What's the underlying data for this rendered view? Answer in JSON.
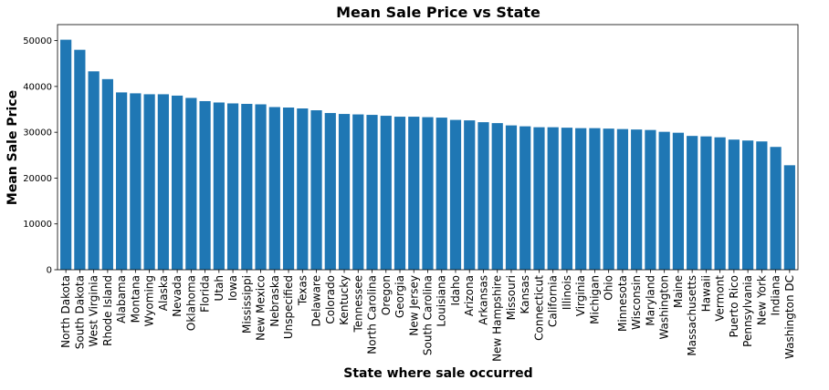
{
  "chart_data": {
    "type": "bar",
    "title": "Mean Sale Price vs State",
    "xlabel": "State where sale occurred",
    "ylabel": "Mean Sale Price",
    "ylim": [
      0,
      53500
    ],
    "yticks": [
      0,
      10000,
      20000,
      30000,
      40000,
      50000
    ],
    "bar_color": "#1f77b4",
    "grid": false,
    "categories": [
      "North Dakota",
      "South Dakota",
      "West Virginia",
      "Rhode Island",
      "Alabama",
      "Montana",
      "Wyoming",
      "Alaska",
      "Nevada",
      "Oklahoma",
      "Florida",
      "Utah",
      "Iowa",
      "Mississippi",
      "New Mexico",
      "Nebraska",
      "Unspecified",
      "Texas",
      "Delaware",
      "Colorado",
      "Kentucky",
      "Tennessee",
      "North Carolina",
      "Oregon",
      "Georgia",
      "New Jersey",
      "South Carolina",
      "Louisiana",
      "Idaho",
      "Arizona",
      "Arkansas",
      "New Hampshire",
      "Missouri",
      "Kansas",
      "Connecticut",
      "California",
      "Illinois",
      "Virginia",
      "Michigan",
      "Ohio",
      "Minnesota",
      "Wisconsin",
      "Maryland",
      "Washington",
      "Maine",
      "Massachusetts",
      "Hawaii",
      "Vermont",
      "Puerto Rico",
      "Pennsylvania",
      "New York",
      "Indiana",
      "Washington DC"
    ],
    "values": [
      50200,
      48000,
      43300,
      41600,
      38700,
      38500,
      38300,
      38300,
      38000,
      37500,
      36800,
      36500,
      36300,
      36200,
      36100,
      35500,
      35400,
      35200,
      34800,
      34200,
      34000,
      33900,
      33800,
      33600,
      33400,
      33400,
      33300,
      33200,
      32700,
      32600,
      32200,
      32000,
      31500,
      31300,
      31100,
      31100,
      31000,
      30900,
      30900,
      30800,
      30700,
      30600,
      30500,
      30100,
      29900,
      29200,
      29100,
      28900,
      28400,
      28200,
      28000,
      26800,
      22800
    ]
  }
}
